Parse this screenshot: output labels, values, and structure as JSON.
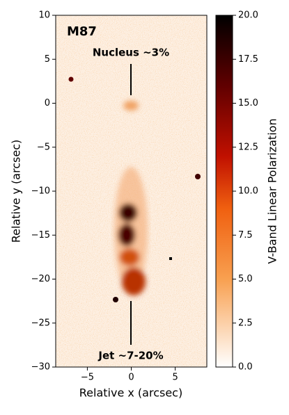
{
  "chart_data": {
    "type": "image",
    "annotations": [
      "M87",
      "Nucleus ~3%",
      "Jet ~7-20%"
    ],
    "xlabel": "Relative x (arcsec)",
    "ylabel": "Relative y (arcsec)",
    "xlim": [
      -8.6,
      8.6
    ],
    "ylim": [
      -30,
      10
    ],
    "xticks": [
      {
        "value": -5,
        "label": "−5"
      },
      0,
      5
    ],
    "yticks": [
      10,
      5,
      0,
      {
        "value": -5,
        "label": "−5"
      },
      {
        "value": -10,
        "label": "−10"
      },
      {
        "value": -15,
        "label": "−15"
      },
      {
        "value": -20,
        "label": "−20"
      },
      {
        "value": -25,
        "label": "−25"
      },
      {
        "value": -30,
        "label": "−30"
      }
    ],
    "colorbar": {
      "label": "V-Band Linear Polarization",
      "lim": [
        0,
        20
      ],
      "ticks": [
        {
          "value": 0,
          "label": "0.0"
        },
        {
          "value": 2.5,
          "label": "2.5"
        },
        {
          "value": 5,
          "label": "5.0"
        },
        {
          "value": 7.5,
          "label": "7.5"
        },
        {
          "value": 10,
          "label": "10.0"
        },
        {
          "value": 12.5,
          "label": "12.5"
        },
        {
          "value": 15,
          "label": "15.0"
        },
        {
          "value": 17.5,
          "label": "17.5"
        },
        {
          "value": 20,
          "label": "20.0"
        }
      ]
    }
  }
}
